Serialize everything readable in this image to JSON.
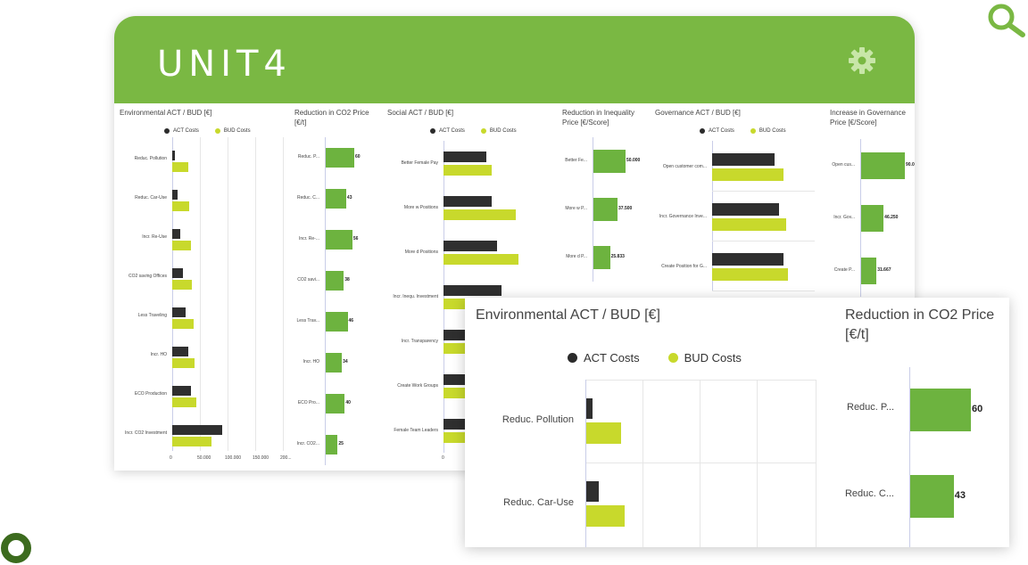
{
  "brand": {
    "logo": "UNIT4",
    "accent": "#7ab843",
    "act_color": "#2b2b2b",
    "bud_color": "#c8d92c",
    "bar_green": "#6db33f"
  },
  "icons": {
    "settings": "gear-icon",
    "search": "search-icon",
    "ring": "ring-icon"
  },
  "legend": {
    "act": "ACT Costs",
    "bud": "BUD Costs"
  },
  "panels": {
    "environmental": {
      "title": "Environmental ACT / BUD [€]",
      "categories": [
        "Reduc. Pollution",
        "Reduc. Car-Use",
        "Incr. Re-Use",
        "CO2 saving Offices",
        "Less Traveling",
        "Incr. HO",
        "ECO Production",
        "Incr. CO2 Investment"
      ],
      "ticks": [
        "0",
        "50.000",
        "100.000",
        "150.000",
        "200..."
      ]
    },
    "co2price": {
      "title_line1": "Reduction in CO2 Price",
      "title_line2": "[€/t]",
      "labels": [
        "Reduc. P...",
        "Reduc. C...",
        "Incr. Re-...",
        "CO2 savi...",
        "Less Trav...",
        "Incr. HO",
        "ECO Pro...",
        "Incr. CO2..."
      ],
      "values_text": [
        "60",
        "43",
        "56",
        "38",
        "46",
        "34",
        "40",
        "25"
      ]
    },
    "social": {
      "title": "Social ACT / BUD [€]",
      "categories": [
        "Better Female Pay",
        "More w Positions",
        "More d Positions",
        "Incr. Inequ. Investment",
        "Incr. Transparency",
        "Create Work Groups",
        "Female Team Leaders"
      ],
      "ticks": [
        "0"
      ]
    },
    "inequality": {
      "title_line1": "Reduction in Inequality",
      "title_line2": "Price [€/Score]",
      "labels": [
        "Better Fe...",
        "More w P...",
        "More d P..."
      ],
      "values_text": [
        "50.000",
        "37.500",
        "25.833"
      ]
    },
    "governance": {
      "title": "Governance ACT / BUD [€]",
      "categories": [
        "Open customer com...",
        "Incr. Governance Inve...",
        "Create Position for G..."
      ]
    },
    "govprice": {
      "title_line1": "Increase in Governance",
      "title_line2": "Price [€/Score]",
      "labels": [
        "Open cus...",
        "Incr. Gov...",
        "Create P..."
      ],
      "values_text": [
        "90.000",
        "46.250",
        "31.667"
      ]
    }
  },
  "chart_data": [
    {
      "type": "bar",
      "title": "Environmental ACT / BUD [€]",
      "categories": [
        "Reduc. Pollution",
        "Reduc. Car-Use",
        "Incr. Re-Use",
        "CO2 saving Offices",
        "Less Traveling",
        "Incr. HO",
        "ECO Production",
        "Incr. CO2 Investment"
      ],
      "series": [
        {
          "name": "ACT Costs",
          "values": [
            5000,
            10000,
            15000,
            20000,
            25000,
            30000,
            35000,
            95000
          ]
        },
        {
          "name": "BUD Costs",
          "values": [
            30000,
            33000,
            35000,
            38000,
            40000,
            43000,
            45000,
            75000
          ]
        }
      ],
      "xlim": [
        0,
        200000
      ]
    },
    {
      "type": "bar",
      "title": "Reduction in CO2 Price [€/t]",
      "categories": [
        "Reduc. P...",
        "Reduc. C...",
        "Incr. Re-...",
        "CO2 savi...",
        "Less Trav...",
        "Incr. HO",
        "ECO Pro...",
        "Incr. CO2..."
      ],
      "values": [
        60,
        43,
        56,
        38,
        46,
        34,
        40,
        25
      ]
    },
    {
      "type": "bar",
      "title": "Social ACT / BUD [€]",
      "categories": [
        "Better Female Pay",
        "More w Positions",
        "More d Positions",
        "Incr. Inequ. Investment",
        "Incr. Transparency",
        "Create Work Groups",
        "Female Team Leaders"
      ],
      "series": [
        {
          "name": "ACT Costs",
          "values": [
            30,
            34,
            38,
            41,
            44,
            46,
            48
          ]
        },
        {
          "name": "BUD Costs",
          "values": [
            34,
            51,
            53,
            50,
            52,
            54,
            55
          ]
        }
      ]
    },
    {
      "type": "bar",
      "title": "Reduction in Inequality Price [€/Score]",
      "categories": [
        "Better Fe...",
        "More w P...",
        "More d P..."
      ],
      "values": [
        50000,
        37500,
        25833
      ]
    },
    {
      "type": "bar",
      "title": "Governance ACT / BUD [€]",
      "categories": [
        "Open customer com...",
        "Incr. Governance Inve...",
        "Create Position for G..."
      ],
      "series": [
        {
          "name": "ACT Costs",
          "values": [
            74,
            79,
            84
          ]
        },
        {
          "name": "BUD Costs",
          "values": [
            84,
            87,
            89
          ]
        }
      ]
    },
    {
      "type": "bar",
      "title": "Increase in Governance Price [€/Score]",
      "categories": [
        "Open cus...",
        "Incr. Gov...",
        "Create P..."
      ],
      "values": [
        90000,
        46250,
        31667
      ]
    }
  ],
  "zoom": {
    "title": "Environmental ACT / BUD [€]",
    "right_title_line1": "Reduction in CO2 Price",
    "right_title_line2": "[€/t]",
    "legend_act": "ACT Costs",
    "legend_bud": "BUD Costs",
    "categories": [
      "Reduc. Pollution",
      "Reduc. Car-Use"
    ],
    "labels": [
      "Reduc. P...",
      "Reduc. C..."
    ],
    "values_text": [
      "60",
      "43"
    ]
  }
}
